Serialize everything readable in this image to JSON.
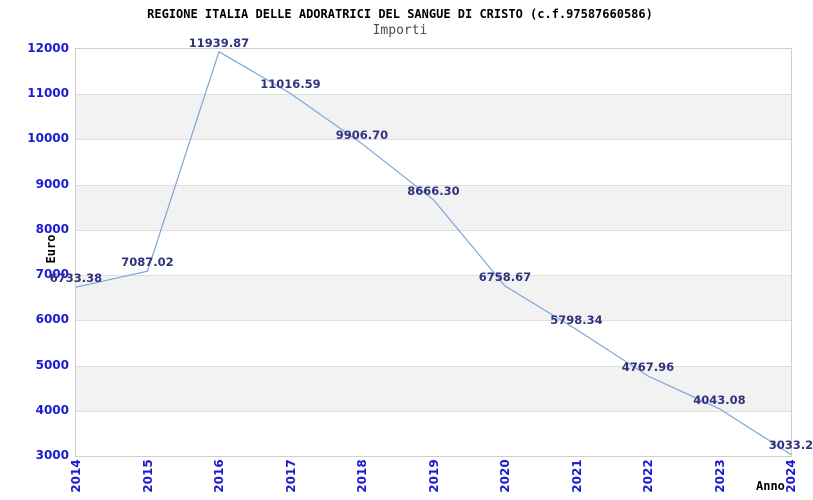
{
  "chart_data": {
    "type": "line",
    "title": "REGIONE ITALIA DELLE ADORATRICI DEL SANGUE DI CRISTO (c.f.97587660586)",
    "subtitle": "Importi",
    "xlabel": "Anno",
    "ylabel": "Euro",
    "x": [
      2014,
      2015,
      2016,
      2017,
      2018,
      2019,
      2020,
      2021,
      2022,
      2023,
      2024
    ],
    "series": [
      {
        "name": "Importi",
        "values": [
          6733.38,
          7087.02,
          11939.87,
          11016.59,
          9906.7,
          8666.3,
          6758.67,
          5798.34,
          4767.96,
          4043.08,
          3033.2
        ],
        "point_labels": [
          "6733.38",
          "7087.02",
          "11939.87",
          "11016.59",
          "9906.70",
          "8666.30",
          "6758.67",
          "5798.34",
          "4767.96",
          "4043.08",
          "3033.2"
        ]
      }
    ],
    "ylim": [
      3000,
      12000
    ],
    "ytick_step": 1000,
    "yticks": [
      3000,
      4000,
      5000,
      6000,
      7000,
      8000,
      9000,
      10000,
      11000,
      12000
    ],
    "grid": "horizontal, alternating shaded bands",
    "legend_position": "none",
    "colors": {
      "line": "#7ca6dc",
      "point_label": "#31317d",
      "tick_label": "#1b1bd3",
      "band": "#f2f2f2",
      "grid": "#dedede",
      "border": "#cfcfcf",
      "title": "#000000",
      "subtitle": "#4d4d4d",
      "background": "#ffffff"
    }
  }
}
